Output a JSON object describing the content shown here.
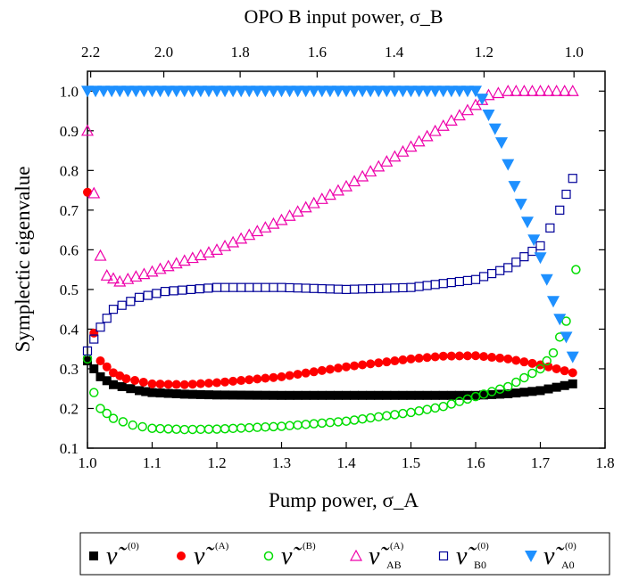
{
  "chart_data": {
    "type": "scatter",
    "title": "",
    "xlabel": "Pump power, σ_A",
    "ylabel": "Symplectic eigenvalue",
    "top_axis_label": "OPO B input power, σ_B",
    "xlim": [
      1.0,
      1.8
    ],
    "ylim": [
      0.1,
      1.05
    ],
    "xticks": [
      "1.0",
      "1.1",
      "1.2",
      "1.3",
      "1.4",
      "1.5",
      "1.6",
      "1.7",
      "1.8"
    ],
    "yticks": [
      "0.1",
      "0.2",
      "0.3",
      "0.4",
      "0.5",
      "0.6",
      "0.7",
      "0.8",
      "0.9",
      "1.0"
    ],
    "top_ticks": [
      {
        "label": "2.2",
        "x": 1.005
      },
      {
        "label": "2.0",
        "x": 1.118
      },
      {
        "label": "1.8",
        "x": 1.236
      },
      {
        "label": "1.6",
        "x": 1.355
      },
      {
        "label": "1.4",
        "x": 1.474
      },
      {
        "label": "1.2",
        "x": 1.613
      },
      {
        "label": "1.0",
        "x": 1.752
      }
    ],
    "grid": false,
    "legend_position": "bottom",
    "series": [
      {
        "name": "ν̃ (0)",
        "legend": {
          "symbol": "ν̃",
          "sup": "(0)",
          "sub": ""
        },
        "marker": "square-filled",
        "color": "#000000",
        "points": [
          [
            1.0,
            0.32
          ],
          [
            1.02,
            0.28
          ],
          [
            1.04,
            0.26
          ],
          [
            1.08,
            0.245
          ],
          [
            1.1,
            0.24
          ],
          [
            1.15,
            0.236
          ],
          [
            1.2,
            0.234
          ],
          [
            1.3,
            0.233
          ],
          [
            1.4,
            0.233
          ],
          [
            1.5,
            0.233
          ],
          [
            1.55,
            0.233
          ],
          [
            1.6,
            0.233
          ],
          [
            1.65,
            0.237
          ],
          [
            1.7,
            0.245
          ],
          [
            1.75,
            0.262
          ]
        ]
      },
      {
        "name": "ν̃ (A)",
        "legend": {
          "symbol": "ν̃",
          "sup": "(A)",
          "sub": ""
        },
        "marker": "circle-filled",
        "color": "#ff0000",
        "points": [
          [
            1.0,
            0.745
          ],
          [
            1.01,
            0.39
          ],
          [
            1.02,
            0.32
          ],
          [
            1.04,
            0.29
          ],
          [
            1.06,
            0.275
          ],
          [
            1.1,
            0.262
          ],
          [
            1.15,
            0.26
          ],
          [
            1.2,
            0.265
          ],
          [
            1.3,
            0.28
          ],
          [
            1.4,
            0.305
          ],
          [
            1.5,
            0.325
          ],
          [
            1.55,
            0.332
          ],
          [
            1.6,
            0.333
          ],
          [
            1.65,
            0.325
          ],
          [
            1.7,
            0.31
          ],
          [
            1.75,
            0.29
          ]
        ]
      },
      {
        "name": "ν̃ (B)",
        "legend": {
          "symbol": "ν̃",
          "sup": "(B)",
          "sub": ""
        },
        "marker": "circle-open",
        "color": "#00dd00",
        "points": [
          [
            1.0,
            0.325
          ],
          [
            1.01,
            0.24
          ],
          [
            1.02,
            0.2
          ],
          [
            1.04,
            0.175
          ],
          [
            1.07,
            0.158
          ],
          [
            1.1,
            0.15
          ],
          [
            1.15,
            0.147
          ],
          [
            1.2,
            0.148
          ],
          [
            1.3,
            0.155
          ],
          [
            1.4,
            0.168
          ],
          [
            1.5,
            0.19
          ],
          [
            1.55,
            0.205
          ],
          [
            1.6,
            0.23
          ],
          [
            1.65,
            0.255
          ],
          [
            1.7,
            0.3
          ],
          [
            1.72,
            0.34
          ],
          [
            1.74,
            0.42
          ],
          [
            1.755,
            0.55
          ]
        ]
      },
      {
        "name": "ν̃ AB (A)",
        "legend": {
          "symbol": "ν̃",
          "sup": "(A)",
          "sub": "AB"
        },
        "marker": "triangle-open",
        "color": "#ee00aa",
        "points": [
          [
            1.0,
            0.9
          ],
          [
            1.02,
            0.585
          ],
          [
            1.03,
            0.535
          ],
          [
            1.05,
            0.52
          ],
          [
            1.1,
            0.545
          ],
          [
            1.2,
            0.6
          ],
          [
            1.3,
            0.675
          ],
          [
            1.4,
            0.76
          ],
          [
            1.5,
            0.86
          ],
          [
            1.6,
            0.965
          ],
          [
            1.62,
            0.99
          ],
          [
            1.65,
            1.0
          ],
          [
            1.7,
            1.0
          ],
          [
            1.75,
            1.0
          ]
        ]
      },
      {
        "name": "ν̃ B0 (0)",
        "legend": {
          "symbol": "ν̃",
          "sup": "(0)",
          "sub": "B0"
        },
        "marker": "square-open",
        "color": "#000099",
        "points": [
          [
            1.0,
            0.345
          ],
          [
            1.02,
            0.405
          ],
          [
            1.04,
            0.45
          ],
          [
            1.08,
            0.48
          ],
          [
            1.12,
            0.495
          ],
          [
            1.2,
            0.505
          ],
          [
            1.3,
            0.505
          ],
          [
            1.4,
            0.5
          ],
          [
            1.5,
            0.505
          ],
          [
            1.55,
            0.515
          ],
          [
            1.6,
            0.525
          ],
          [
            1.65,
            0.555
          ],
          [
            1.7,
            0.61
          ],
          [
            1.73,
            0.7
          ],
          [
            1.75,
            0.78
          ]
        ]
      },
      {
        "name": "ν̃ A0 (0)",
        "legend": {
          "symbol": "ν̃",
          "sup": "(0)",
          "sub": "A0"
        },
        "marker": "triangle-down-filled",
        "color": "#1e90ff",
        "points": [
          [
            1.0,
            1.0
          ],
          [
            1.2,
            1.0
          ],
          [
            1.4,
            1.0
          ],
          [
            1.6,
            1.0
          ],
          [
            1.61,
            0.98
          ],
          [
            1.62,
            0.94
          ],
          [
            1.64,
            0.87
          ],
          [
            1.66,
            0.76
          ],
          [
            1.68,
            0.67
          ],
          [
            1.7,
            0.58
          ],
          [
            1.72,
            0.47
          ],
          [
            1.74,
            0.38
          ],
          [
            1.75,
            0.33
          ]
        ]
      }
    ]
  }
}
